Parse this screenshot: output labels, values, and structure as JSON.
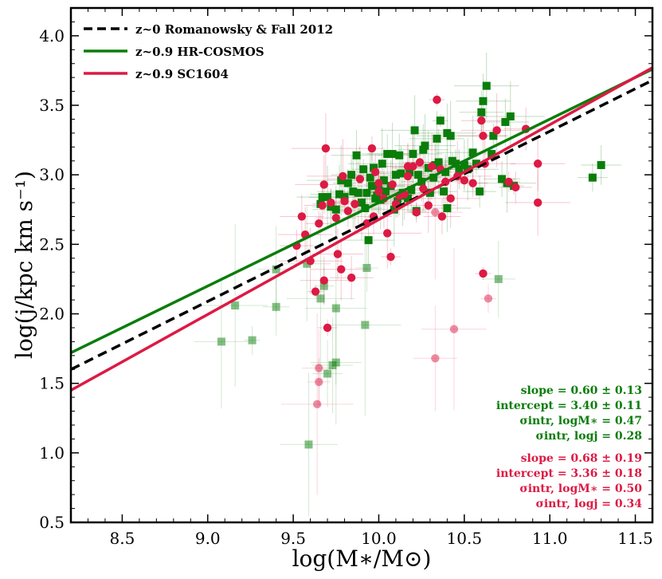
{
  "chart_data": {
    "type": "scatter",
    "title": "",
    "xlabel": "log(M∗/M⊙)",
    "ylabel": "log(j/kpc km s⁻¹)",
    "xlim": [
      8.2,
      11.6
    ],
    "ylim": [
      0.5,
      4.2
    ],
    "xticks": [
      "8.5",
      "9.0",
      "9.5",
      "10.0",
      "10.5",
      "11.0",
      "11.5"
    ],
    "yticks": [
      "0.5",
      "1.0",
      "1.5",
      "2.0",
      "2.5",
      "3.0",
      "3.5",
      "4.0"
    ],
    "legend_position": "top-left",
    "colors": {
      "cosmos": "#0a7d0a",
      "sc1604": "#dc1a44",
      "rf2012": "#000000"
    },
    "lines": [
      {
        "name": "z~0 Romanowsky & Fall 2012",
        "style": "dashed",
        "color": "#000000",
        "x": [
          8.2,
          11.6
        ],
        "y": [
          1.6,
          3.68
        ]
      },
      {
        "name": "z~0.9 HR-COSMOS",
        "style": "solid",
        "color": "#0a7d0a",
        "x": [
          8.2,
          11.6
        ],
        "y": [
          1.72,
          3.76
        ]
      },
      {
        "name": "z~0.9 SC1604",
        "style": "solid",
        "color": "#dc1a44",
        "x": [
          8.2,
          11.6
        ],
        "y": [
          1.45,
          3.77
        ]
      }
    ],
    "fit_cosmos": [
      {
        "label": "slope = 0.60 ± 0.13"
      },
      {
        "label": "intercept = 3.40 ± 0.11"
      },
      {
        "label": "σintr, logM∗ = 0.47"
      },
      {
        "label": "σintr, logj = 0.28"
      }
    ],
    "fit_sc1604": [
      {
        "label": "slope = 0.68 ± 0.19"
      },
      {
        "label": "intercept = 3.36 ± 0.18"
      },
      {
        "label": "σintr, logM∗ = 0.50"
      },
      {
        "label": "σintr, logj = 0.34"
      }
    ],
    "series": [
      {
        "name": "z~0.9 HR-COSMOS",
        "marker": "square",
        "color": "#0a7d0a",
        "points": [
          [
            9.66,
            2.79
          ],
          [
            9.67,
            2.84
          ],
          [
            9.72,
            2.77
          ],
          [
            9.75,
            2.75
          ],
          [
            9.77,
            2.86
          ],
          [
            9.78,
            2.96
          ],
          [
            9.8,
            2.84
          ],
          [
            9.82,
            2.94
          ],
          [
            9.84,
            3.0
          ],
          [
            9.87,
            3.14
          ],
          [
            9.88,
            2.87
          ],
          [
            9.9,
            2.8
          ],
          [
            9.91,
            3.04
          ],
          [
            9.92,
            2.76
          ],
          [
            9.93,
            2.87
          ],
          [
            9.95,
            2.98
          ],
          [
            9.96,
            2.92
          ],
          [
            9.97,
            3.05
          ],
          [
            9.98,
            2.83
          ],
          [
            9.99,
            2.85
          ],
          [
            10.0,
            2.89
          ],
          [
            10.01,
            2.82
          ],
          [
            10.02,
            3.08
          ],
          [
            10.03,
            2.96
          ],
          [
            10.04,
            2.88
          ],
          [
            10.05,
            3.15
          ],
          [
            10.07,
            2.92
          ],
          [
            10.08,
            3.15
          ],
          [
            10.09,
            2.75
          ],
          [
            10.1,
            3.0
          ],
          [
            10.11,
            2.81
          ],
          [
            10.12,
            3.14
          ],
          [
            10.13,
            3.01
          ],
          [
            10.14,
            2.87
          ],
          [
            10.15,
            2.85
          ],
          [
            10.17,
            2.83
          ],
          [
            10.18,
            3.02
          ],
          [
            10.19,
            2.89
          ],
          [
            10.2,
            3.15
          ],
          [
            10.21,
            3.32
          ],
          [
            10.22,
            2.74
          ],
          [
            10.23,
            3.0
          ],
          [
            10.25,
            2.95
          ],
          [
            10.26,
            3.18
          ],
          [
            10.27,
            3.21
          ],
          [
            10.29,
            3.05
          ],
          [
            10.3,
            2.87
          ],
          [
            10.32,
            2.98
          ],
          [
            10.33,
            3.07
          ],
          [
            10.34,
            3.26
          ],
          [
            10.35,
            3.09
          ],
          [
            10.36,
            3.39
          ],
          [
            10.38,
            2.88
          ],
          [
            10.39,
            3.02
          ],
          [
            10.4,
            2.76
          ],
          [
            10.4,
            3.3
          ],
          [
            10.42,
            3.28
          ],
          [
            10.43,
            3.1
          ],
          [
            10.45,
            3.08
          ],
          [
            10.47,
            3.04
          ],
          [
            10.5,
            3.07
          ],
          [
            10.52,
            3.04
          ],
          [
            10.55,
            3.16
          ],
          [
            10.57,
            3.08
          ],
          [
            10.59,
            2.88
          ],
          [
            10.6,
            3.45
          ],
          [
            10.61,
            3.53
          ],
          [
            10.63,
            3.64
          ],
          [
            10.66,
            3.15
          ],
          [
            10.67,
            3.28
          ],
          [
            10.72,
            2.97
          ],
          [
            10.74,
            3.38
          ],
          [
            10.75,
            2.94
          ],
          [
            10.77,
            3.42
          ],
          [
            10.79,
            2.92
          ],
          [
            11.25,
            2.98
          ],
          [
            11.3,
            3.07
          ],
          [
            9.94,
            2.53
          ],
          [
            9.7,
            2.84
          ],
          [
            9.85,
            2.88
          ]
        ]
      },
      {
        "name": "HR-COSMOS (faint)",
        "marker": "square",
        "color": "#0a7d0a",
        "faint": true,
        "points": [
          [
            9.08,
            1.8
          ],
          [
            9.16,
            2.06
          ],
          [
            9.26,
            1.81
          ],
          [
            9.4,
            2.05
          ],
          [
            9.4,
            2.32
          ],
          [
            9.58,
            2.36
          ],
          [
            9.59,
            1.06
          ],
          [
            9.66,
            2.11
          ],
          [
            9.68,
            2.2
          ],
          [
            9.7,
            1.57
          ],
          [
            9.73,
            1.63
          ],
          [
            9.75,
            1.65
          ],
          [
            9.75,
            2.04
          ],
          [
            9.92,
            1.92
          ],
          [
            9.93,
            2.33
          ],
          [
            10.7,
            2.25
          ]
        ]
      },
      {
        "name": "z~0.9 SC1604",
        "marker": "circle",
        "color": "#dc1a44",
        "points": [
          [
            9.52,
            2.49
          ],
          [
            9.55,
            2.7
          ],
          [
            9.57,
            2.57
          ],
          [
            9.6,
            2.38
          ],
          [
            9.63,
            2.16
          ],
          [
            9.65,
            2.65
          ],
          [
            9.67,
            2.78
          ],
          [
            9.68,
            2.24
          ],
          [
            9.68,
            2.93
          ],
          [
            9.69,
            3.19
          ],
          [
            9.7,
            1.9
          ],
          [
            9.72,
            2.8
          ],
          [
            9.75,
            2.69
          ],
          [
            9.76,
            2.43
          ],
          [
            9.78,
            2.32
          ],
          [
            9.79,
            2.99
          ],
          [
            9.8,
            2.81
          ],
          [
            9.82,
            2.74
          ],
          [
            9.84,
            2.26
          ],
          [
            9.86,
            2.79
          ],
          [
            9.89,
            2.97
          ],
          [
            9.93,
            2.65
          ],
          [
            9.96,
            3.19
          ],
          [
            9.97,
            2.7
          ],
          [
            10.0,
            2.88
          ],
          [
            10.03,
            2.83
          ],
          [
            10.05,
            2.58
          ],
          [
            10.07,
            2.41
          ],
          [
            10.1,
            2.79
          ],
          [
            10.12,
            2.85
          ],
          [
            10.15,
            2.86
          ],
          [
            10.17,
            2.99
          ],
          [
            10.2,
            3.06
          ],
          [
            10.22,
            2.73
          ],
          [
            10.24,
            3.09
          ],
          [
            10.26,
            2.9
          ],
          [
            10.29,
            2.78
          ],
          [
            10.31,
            3.06
          ],
          [
            10.34,
            3.54
          ],
          [
            10.36,
            3.04
          ],
          [
            10.37,
            2.7
          ],
          [
            10.39,
            2.95
          ],
          [
            10.42,
            2.83
          ],
          [
            10.46,
            2.99
          ],
          [
            10.5,
            2.96
          ],
          [
            10.55,
            2.94
          ],
          [
            10.6,
            3.39
          ],
          [
            10.61,
            3.28
          ],
          [
            10.62,
            3.08
          ],
          [
            10.69,
            3.32
          ],
          [
            10.76,
            2.95
          ],
          [
            10.8,
            2.91
          ],
          [
            10.86,
            3.33
          ],
          [
            10.93,
            3.08
          ],
          [
            10.93,
            2.8
          ],
          [
            10.61,
            2.29
          ],
          [
            10.0,
            2.94
          ],
          [
            9.98,
            3.02
          ],
          [
            10.17,
            3.06
          ],
          [
            10.08,
            2.93
          ]
        ]
      },
      {
        "name": "SC1604 (faint)",
        "marker": "circle",
        "color": "#dc1a44",
        "faint": true,
        "points": [
          [
            9.64,
            1.35
          ],
          [
            9.65,
            1.51
          ],
          [
            9.65,
            1.61
          ],
          [
            10.33,
            1.68
          ],
          [
            10.33,
            2.73
          ],
          [
            10.44,
            1.89
          ],
          [
            10.64,
            2.11
          ]
        ]
      }
    ]
  }
}
